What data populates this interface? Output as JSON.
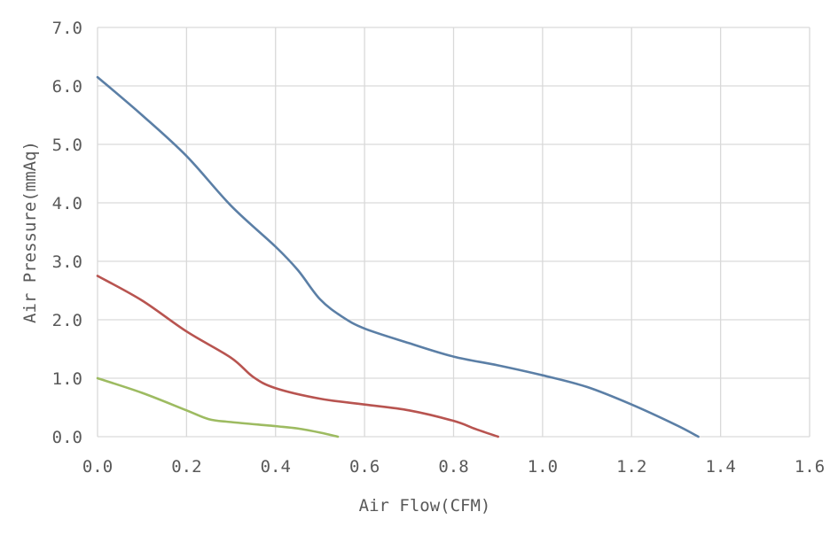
{
  "chart_data": {
    "type": "line",
    "title": "",
    "xlabel": "Air Flow(CFM)",
    "ylabel": "Air Pressure(mmAq)",
    "xlim": [
      0,
      1.6
    ],
    "ylim": [
      0,
      7
    ],
    "x_ticks": [
      "0.0",
      "0.2",
      "0.4",
      "0.6",
      "0.8",
      "1.0",
      "1.2",
      "1.4",
      "1.6"
    ],
    "y_ticks": [
      "0.0",
      "1.0",
      "2.0",
      "3.0",
      "4.0",
      "5.0",
      "6.0",
      "7.0"
    ],
    "grid": true,
    "legend": "none",
    "series": [
      {
        "color": "#5b7fa6",
        "points": [
          [
            0.0,
            6.15
          ],
          [
            0.1,
            5.5
          ],
          [
            0.2,
            4.8
          ],
          [
            0.3,
            3.95
          ],
          [
            0.4,
            3.25
          ],
          [
            0.45,
            2.85
          ],
          [
            0.5,
            2.35
          ],
          [
            0.55,
            2.05
          ],
          [
            0.6,
            1.85
          ],
          [
            0.7,
            1.6
          ],
          [
            0.8,
            1.37
          ],
          [
            0.9,
            1.22
          ],
          [
            1.0,
            1.05
          ],
          [
            1.1,
            0.85
          ],
          [
            1.2,
            0.55
          ],
          [
            1.3,
            0.2
          ],
          [
            1.35,
            0.0
          ]
        ]
      },
      {
        "color": "#b85450",
        "points": [
          [
            0.0,
            2.75
          ],
          [
            0.1,
            2.33
          ],
          [
            0.2,
            1.8
          ],
          [
            0.3,
            1.35
          ],
          [
            0.35,
            1.02
          ],
          [
            0.4,
            0.83
          ],
          [
            0.5,
            0.65
          ],
          [
            0.6,
            0.55
          ],
          [
            0.7,
            0.45
          ],
          [
            0.8,
            0.27
          ],
          [
            0.85,
            0.13
          ],
          [
            0.9,
            0.0
          ]
        ]
      },
      {
        "color": "#9dbb61",
        "points": [
          [
            0.0,
            1.0
          ],
          [
            0.1,
            0.75
          ],
          [
            0.2,
            0.45
          ],
          [
            0.25,
            0.3
          ],
          [
            0.3,
            0.25
          ],
          [
            0.4,
            0.18
          ],
          [
            0.45,
            0.14
          ],
          [
            0.5,
            0.07
          ],
          [
            0.54,
            0.0
          ]
        ]
      }
    ]
  }
}
